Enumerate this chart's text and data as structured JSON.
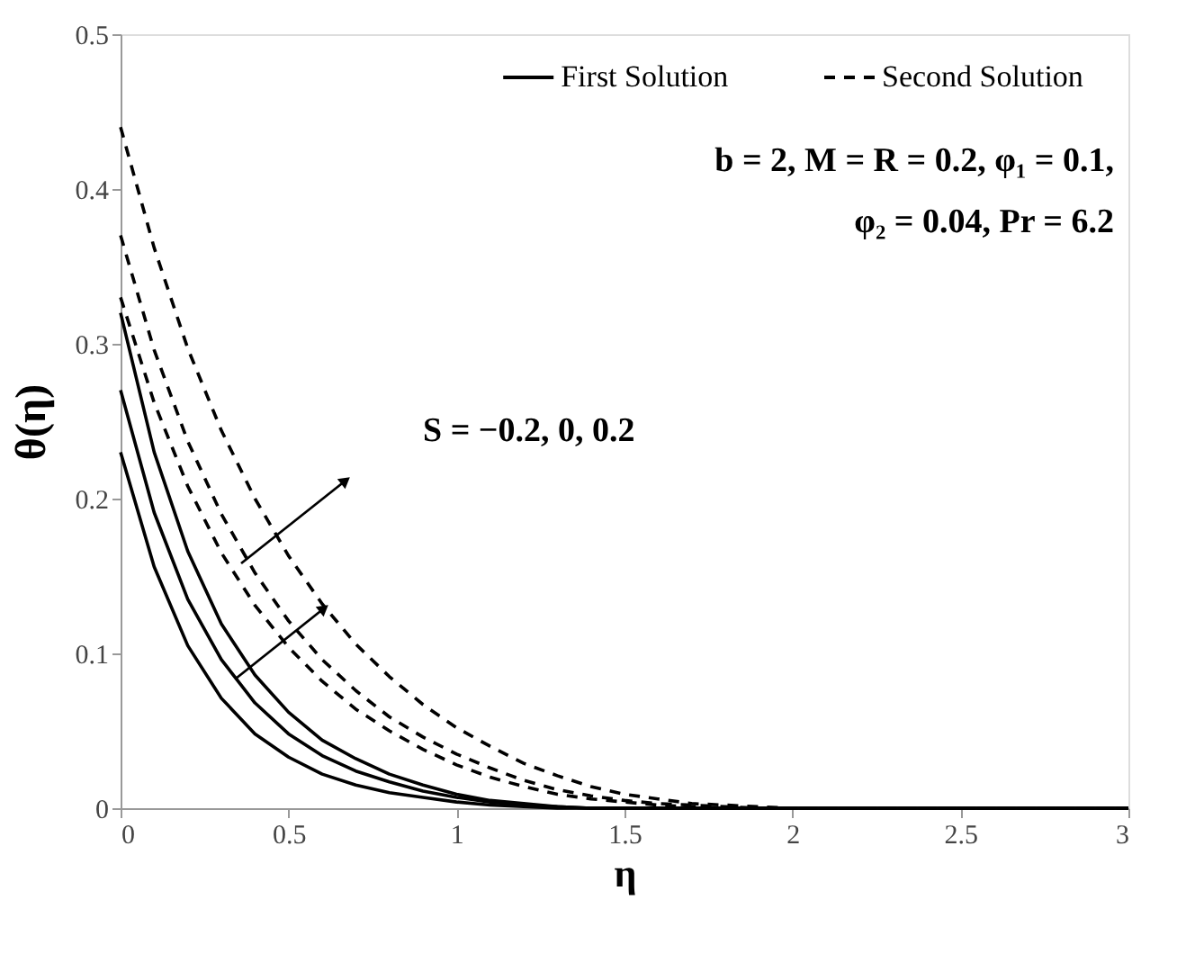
{
  "chart_data": {
    "type": "line",
    "xlabel": "η",
    "ylabel": "θ(η)",
    "x": [
      0,
      0.1,
      0.2,
      0.3,
      0.4,
      0.5,
      0.6,
      0.7,
      0.8,
      0.9,
      1.0,
      1.1,
      1.2,
      1.3,
      1.4,
      1.5,
      1.6,
      1.7,
      1.8,
      1.9,
      2.0,
      2.5,
      3.0
    ],
    "series": [
      {
        "name": "First Solution",
        "color": "#000000",
        "line_style": "solid",
        "values": [
          0.23,
          0.156,
          0.105,
          0.071,
          0.048,
          0.033,
          0.022,
          0.015,
          0.01,
          0.007,
          0.004,
          0.002,
          0.001,
          0,
          0,
          0,
          0,
          0,
          0,
          0,
          0,
          0,
          0
        ]
      },
      {
        "color": "#000000",
        "line_style": "solid",
        "values": [
          0.27,
          0.191,
          0.135,
          0.096,
          0.068,
          0.048,
          0.034,
          0.024,
          0.017,
          0.011,
          0.007,
          0.004,
          0.002,
          0.001,
          0,
          0,
          0,
          0,
          0,
          0,
          0,
          0,
          0
        ]
      },
      {
        "color": "#000000",
        "line_style": "solid",
        "values": [
          0.32,
          0.23,
          0.166,
          0.119,
          0.086,
          0.062,
          0.044,
          0.032,
          0.022,
          0.015,
          0.009,
          0.005,
          0.003,
          0.001,
          0,
          0,
          0,
          0,
          0,
          0,
          0,
          0,
          0
        ]
      },
      {
        "name": "Second Solution",
        "color": "#000000",
        "line_style": "dashed",
        "values": [
          0.33,
          0.262,
          0.208,
          0.165,
          0.131,
          0.104,
          0.082,
          0.064,
          0.05,
          0.038,
          0.028,
          0.02,
          0.014,
          0.009,
          0.006,
          0.004,
          0.002,
          0.001,
          0,
          0,
          0,
          0,
          0
        ]
      },
      {
        "color": "#000000",
        "line_style": "dashed",
        "values": [
          0.37,
          0.296,
          0.237,
          0.19,
          0.152,
          0.121,
          0.096,
          0.076,
          0.059,
          0.046,
          0.035,
          0.026,
          0.018,
          0.012,
          0.008,
          0.005,
          0.003,
          0.002,
          0.001,
          0,
          0,
          0,
          0
        ]
      },
      {
        "color": "#000000",
        "line_style": "dashed",
        "values": [
          0.44,
          0.362,
          0.297,
          0.244,
          0.2,
          0.163,
          0.132,
          0.106,
          0.085,
          0.067,
          0.052,
          0.04,
          0.029,
          0.021,
          0.014,
          0.009,
          0.006,
          0.003,
          0.002,
          0.001,
          0,
          0,
          0
        ]
      }
    ],
    "xlim": [
      0,
      3
    ],
    "xticks": [
      0,
      0.5,
      1,
      1.5,
      2,
      2.5,
      3
    ],
    "ylim": [
      0,
      0.5
    ],
    "yticks": [
      0,
      0.1,
      0.2,
      0.3,
      0.4,
      0.5
    ],
    "legend": "top right",
    "annotations": [
      "b = 2, M = R = 0.2, φ₁ = 0.1,",
      "φ₂ = 0.04, Pr = 6.2",
      "S = −0.2, 0, 0.2"
    ]
  }
}
